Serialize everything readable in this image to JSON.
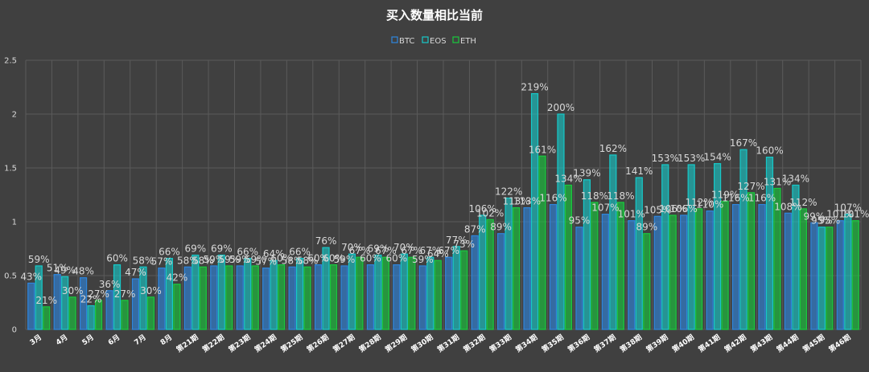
{
  "chart_data": {
    "type": "bar",
    "title": "买入数量相比当前",
    "legend_position": "top",
    "grid": true,
    "ylim": [
      0,
      2.5
    ],
    "yticks": [
      "0",
      "0.5",
      "1",
      "1.5",
      "2",
      "2.5"
    ],
    "categories": [
      "3月",
      "4月",
      "5月",
      "6月",
      "7月",
      "8月",
      "第21期",
      "第22期",
      "第23期",
      "第24期",
      "第25期",
      "第26期",
      "第27期",
      "第28期",
      "第29期",
      "第30期",
      "第31期",
      "第32期",
      "第33期",
      "第34期",
      "第35期",
      "第36期",
      "第37期",
      "第38期",
      "第39期",
      "第40期",
      "第41期",
      "第42期",
      "第43期",
      "第44期",
      "第45期",
      "第46期"
    ],
    "series": [
      {
        "name": "BTC",
        "color": "#2e86de",
        "values": [
          0.43,
          0.51,
          0.48,
          0.36,
          0.47,
          0.57,
          0.58,
          0.59,
          0.59,
          0.57,
          0.58,
          0.6,
          0.59,
          0.6,
          0.6,
          0.59,
          0.67,
          0.87,
          0.89,
          1.13,
          1.16,
          0.95,
          1.07,
          1.01,
          1.05,
          1.06,
          1.1,
          1.16,
          1.16,
          1.08,
          0.99,
          1.01
        ],
        "labels": [
          "43%",
          "51%",
          "48%",
          "36%",
          "47%",
          "57%",
          "58%",
          "59%",
          "59%",
          "57%",
          "58%",
          "60%",
          "59%",
          "60%",
          "60%",
          "59%",
          "67%",
          "87%",
          "89%",
          "113%",
          "116%",
          "95%",
          "107%",
          "101%",
          "105%",
          "106%",
          "110%",
          "116%",
          "116%",
          "108%",
          "99%",
          "101%"
        ]
      },
      {
        "name": "EOS",
        "color": "#17c8c8",
        "values": [
          0.59,
          0.49,
          0.22,
          0.6,
          0.58,
          0.66,
          0.69,
          0.69,
          0.66,
          0.64,
          0.66,
          0.76,
          0.7,
          0.69,
          0.7,
          0.67,
          0.77,
          1.06,
          1.22,
          2.19,
          2.0,
          1.39,
          1.62,
          1.41,
          1.53,
          1.53,
          1.54,
          1.67,
          1.6,
          1.34,
          0.95,
          1.07
        ],
        "labels": [
          "59%",
          "49%",
          "22%",
          "60%",
          "58%",
          "66%",
          "69%",
          "69%",
          "66%",
          "64%",
          "66%",
          "76%",
          "70%",
          "69%",
          "70%",
          "67%",
          "77%",
          "106%",
          "122%",
          "219%",
          "200%",
          "139%",
          "162%",
          "141%",
          "153%",
          "153%",
          "154%",
          "167%",
          "160%",
          "134%",
          "95%",
          "107%"
        ]
      },
      {
        "name": "ETH",
        "color": "#19c93e",
        "values": [
          0.21,
          0.3,
          0.27,
          0.27,
          0.3,
          0.42,
          0.58,
          0.59,
          0.59,
          0.6,
          0.58,
          0.6,
          0.67,
          0.67,
          0.67,
          0.64,
          0.73,
          1.02,
          1.13,
          1.61,
          1.34,
          1.18,
          1.18,
          0.89,
          1.06,
          1.12,
          1.19,
          1.27,
          1.31,
          1.12,
          0.95,
          1.01
        ],
        "labels": [
          "21%",
          "30%",
          "27%",
          "27%",
          "30%",
          "42%",
          "58%",
          "59%",
          "59%",
          "60%",
          "58%",
          "60%",
          "67%",
          "67%",
          "67%",
          "64%",
          "73%",
          "102%",
          "113%",
          "161%",
          "134%",
          "118%",
          "118%",
          "89%",
          "106%",
          "112%",
          "119%",
          "127%",
          "131%",
          "112%",
          "95%",
          "101%"
        ]
      }
    ]
  }
}
